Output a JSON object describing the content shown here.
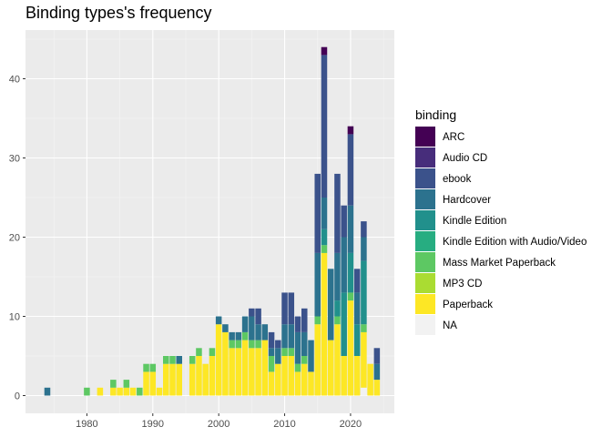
{
  "chart_data": {
    "type": "bar",
    "stacked": true,
    "title": "Binding types's frequency",
    "xlabel": "",
    "ylabel": "",
    "xlim": [
      1972,
      2026
    ],
    "ylim": [
      0,
      45
    ],
    "x_ticks": [
      1980,
      1990,
      2000,
      2010,
      2020
    ],
    "y_ticks": [
      0,
      10,
      20,
      30,
      40
    ],
    "grid": true,
    "legend_position": "right",
    "legend_title": "binding",
    "colors": {
      "ARC": "#440154",
      "Audio CD": "#472D7B",
      "ebook": "#3B528B",
      "Hardcover": "#2C728E",
      "Kindle Edition": "#21908C",
      "Kindle Edition with Audio/Video": "#27AD81",
      "Mass Market Paperback": "#5DC863",
      "MP3 CD": "#AADC32",
      "Paperback": "#FDE725",
      "NA": "#F2F2F2"
    },
    "series_order": [
      "ARC",
      "Audio CD",
      "ebook",
      "Hardcover",
      "Kindle Edition",
      "Kindle Edition with Audio/Video",
      "Mass Market Paperback",
      "MP3 CD",
      "Paperback",
      "NA"
    ],
    "x": [
      1974,
      1980,
      1982,
      1984,
      1985,
      1986,
      1987,
      1988,
      1989,
      1990,
      1991,
      1992,
      1993,
      1994,
      1996,
      1997,
      1998,
      1999,
      2000,
      2001,
      2002,
      2003,
      2004,
      2005,
      2006,
      2007,
      2008,
      2009,
      2010,
      2011,
      2012,
      2013,
      2014,
      2015,
      2016,
      2017,
      2018,
      2019,
      2020,
      2021,
      2022,
      2023,
      2024
    ],
    "series": [
      {
        "name": "ARC",
        "values": [
          0,
          0,
          0,
          0,
          0,
          0,
          0,
          0,
          0,
          0,
          0,
          0,
          0,
          0,
          0,
          0,
          0,
          0,
          0,
          0,
          0,
          0,
          0,
          0,
          0,
          0,
          0,
          0,
          0,
          0,
          0,
          0,
          0,
          0,
          1,
          0,
          0,
          0,
          1,
          0,
          0,
          0,
          0
        ]
      },
      {
        "name": "Audio CD",
        "values": [
          0,
          0,
          0,
          0,
          0,
          0,
          0,
          0,
          0,
          0,
          0,
          0,
          0,
          0,
          0,
          0,
          0,
          0,
          0,
          0,
          0,
          0,
          0,
          0,
          0,
          0,
          0,
          0,
          0,
          0,
          0,
          0,
          0,
          0,
          0,
          0,
          0,
          0,
          0,
          0,
          0,
          0,
          0
        ]
      },
      {
        "name": "ebook",
        "values": [
          0,
          0,
          0,
          0,
          0,
          0,
          0,
          0,
          0,
          0,
          0,
          0,
          0,
          0,
          0,
          0,
          0,
          0,
          0,
          0,
          0,
          0,
          0,
          1,
          2,
          0,
          2,
          1,
          4,
          4,
          2,
          3,
          0,
          10,
          18,
          0,
          10,
          4,
          9,
          3,
          2,
          0,
          2
        ]
      },
      {
        "name": "Hardcover",
        "values": [
          1,
          0,
          0,
          0,
          0,
          0,
          0,
          0,
          0,
          0,
          0,
          0,
          0,
          1,
          0,
          0,
          0,
          0,
          1,
          1,
          1,
          1,
          2,
          3,
          2,
          2,
          1,
          2,
          3,
          3,
          4,
          3,
          4,
          8,
          4,
          9,
          6,
          7,
          6,
          4,
          3,
          0,
          2
        ]
      },
      {
        "name": "Kindle Edition",
        "values": [
          0,
          0,
          0,
          0,
          0,
          0,
          0,
          0,
          0,
          0,
          0,
          0,
          0,
          0,
          0,
          0,
          0,
          0,
          0,
          0,
          0,
          0,
          0,
          0,
          0,
          0,
          0,
          0,
          0,
          0,
          0,
          0,
          0,
          0,
          2,
          0,
          2,
          8,
          5,
          4,
          8,
          0,
          0
        ]
      },
      {
        "name": "Kindle Edition with Audio/Video",
        "values": [
          0,
          0,
          0,
          0,
          0,
          0,
          0,
          0,
          0,
          0,
          0,
          0,
          0,
          0,
          0,
          0,
          0,
          0,
          0,
          0,
          0,
          0,
          0,
          0,
          0,
          0,
          0,
          0,
          0,
          0,
          0,
          0,
          0,
          0,
          0,
          0,
          0,
          0,
          0,
          0,
          0,
          0,
          0
        ]
      },
      {
        "name": "Mass Market Paperback",
        "values": [
          0,
          1,
          0,
          1,
          0,
          1,
          0,
          1,
          1,
          1,
          0,
          1,
          1,
          0,
          1,
          1,
          0,
          1,
          0,
          0,
          1,
          1,
          1,
          1,
          1,
          0,
          2,
          0,
          1,
          1,
          1,
          1,
          0,
          1,
          1,
          0,
          1,
          0,
          1,
          0,
          1,
          0,
          0
        ]
      },
      {
        "name": "MP3 CD",
        "values": [
          0,
          0,
          0,
          0,
          0,
          0,
          0,
          0,
          0,
          0,
          0,
          0,
          0,
          0,
          0,
          0,
          0,
          0,
          0,
          0,
          0,
          0,
          0,
          0,
          0,
          0,
          0,
          0,
          0,
          0,
          0,
          0,
          0,
          0,
          0,
          0,
          0,
          0,
          0,
          0,
          0,
          0,
          0
        ]
      },
      {
        "name": "Paperback",
        "values": [
          0,
          0,
          1,
          1,
          1,
          1,
          1,
          0,
          3,
          3,
          1,
          4,
          4,
          4,
          4,
          5,
          4,
          5,
          9,
          8,
          6,
          6,
          7,
          6,
          6,
          7,
          3,
          4,
          5,
          5,
          3,
          4,
          3,
          9,
          18,
          7,
          9,
          5,
          12,
          5,
          7,
          4,
          2
        ]
      },
      {
        "name": "NA",
        "values": [
          0,
          0,
          0,
          0,
          0,
          0,
          0,
          0,
          0,
          0,
          0,
          0,
          0,
          0,
          0,
          0,
          0,
          0,
          0,
          0,
          0,
          0,
          0,
          0,
          0,
          0,
          0,
          0,
          0,
          0,
          0,
          0,
          0,
          0,
          0,
          0,
          0,
          0,
          0,
          0,
          1,
          0,
          0
        ]
      }
    ]
  }
}
